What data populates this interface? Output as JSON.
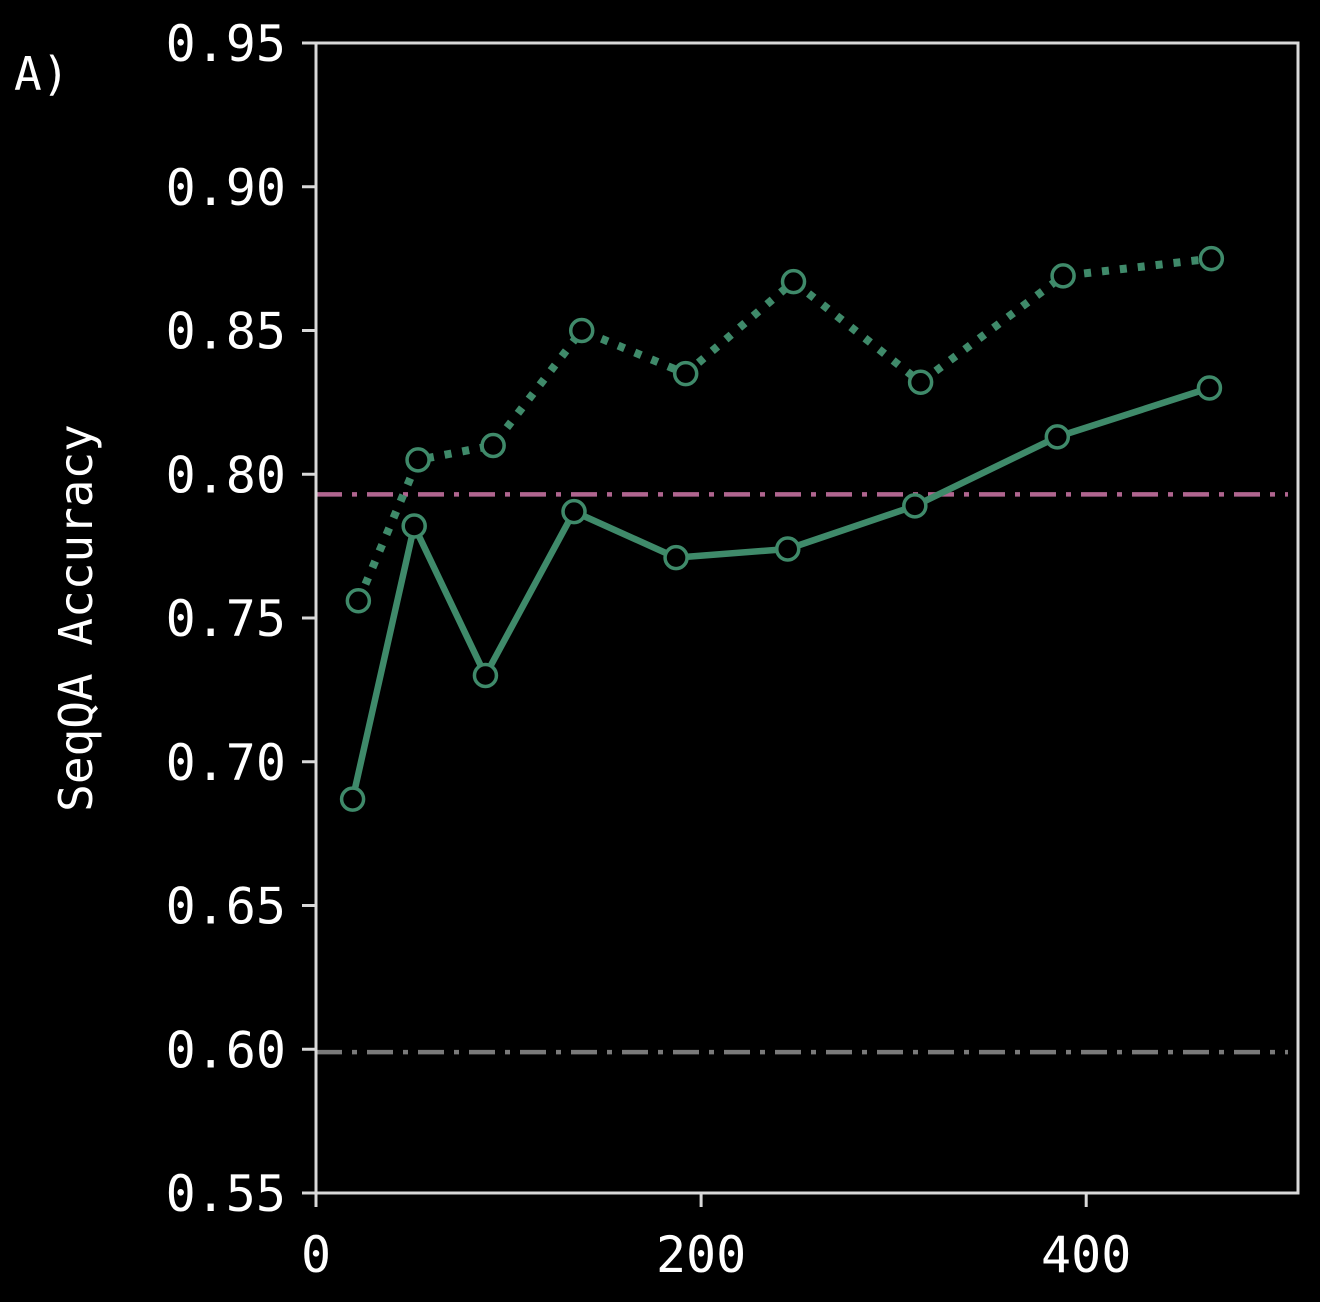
{
  "panel_label": "A)",
  "chart_data": {
    "type": "line",
    "title": "",
    "xlabel": "",
    "ylabel": "SeqQA Accuracy",
    "xlim": [
      0,
      510
    ],
    "ylim": [
      0.55,
      0.95
    ],
    "x_ticks": [
      0,
      200,
      400
    ],
    "x_tick_labels": [
      "0",
      "200",
      "400"
    ],
    "y_ticks": [
      0.55,
      0.6,
      0.65,
      0.7,
      0.75,
      0.8,
      0.85,
      0.9,
      0.95
    ],
    "y_tick_labels": [
      "0.55",
      "0.60",
      "0.65",
      "0.70",
      "0.75",
      "0.80",
      "0.85",
      "0.90",
      "0.95"
    ],
    "grid": false,
    "legend": "none",
    "colors": {
      "background": "#000000",
      "axes": "#d9d9d9",
      "series": "#3f8a6a",
      "reference_pink": "#b0658f",
      "reference_gray": "#7a7a7a"
    },
    "series": [
      {
        "style": "solid",
        "marker": "open-circle",
        "x": [
          19,
          51,
          88,
          134,
          187,
          245,
          311,
          385,
          464
        ],
        "y": [
          0.687,
          0.782,
          0.73,
          0.787,
          0.771,
          0.774,
          0.789,
          0.813,
          0.83
        ]
      },
      {
        "style": "dotted",
        "marker": "open-circle",
        "x": [
          22,
          53,
          92,
          138,
          192,
          248,
          314,
          388,
          465
        ],
        "y": [
          0.756,
          0.805,
          0.81,
          0.85,
          0.835,
          0.867,
          0.832,
          0.869,
          0.875
        ]
      }
    ],
    "reference_lines": [
      {
        "y": 0.793,
        "style": "dash-dot",
        "color": "#b0658f"
      },
      {
        "y": 0.599,
        "style": "dash-dot",
        "color": "#7a7a7a"
      }
    ]
  }
}
